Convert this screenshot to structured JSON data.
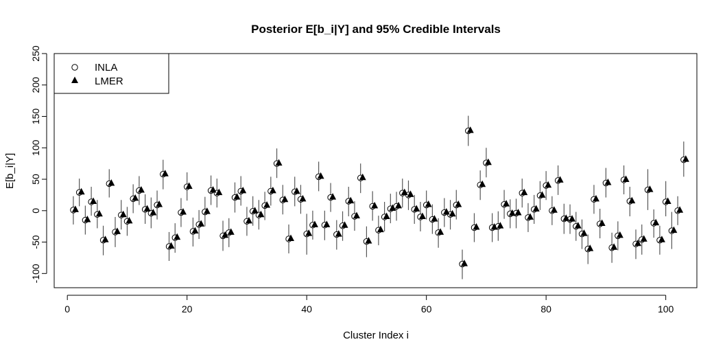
{
  "chart_data": {
    "type": "scatter",
    "title": "Posterior E[b_i|Y] and 95% Credible Intervals",
    "xlabel": "Cluster Index i",
    "ylabel": "E[b_i|Y]",
    "xlim": [
      -2.2,
      105.2
    ],
    "ylim": [
      -122.6,
      250
    ],
    "xticks": [
      0,
      20,
      40,
      60,
      80,
      100
    ],
    "yticks": [
      -100,
      -50,
      0,
      50,
      100,
      150,
      200,
      250
    ],
    "grid": false,
    "legend_position": "top-left",
    "series": [
      {
        "name": "INLA",
        "marker": "open-circle"
      },
      {
        "name": "LMER",
        "marker": "filled-triangle"
      }
    ],
    "x": [
      1,
      2,
      3,
      4,
      5,
      6,
      7,
      8,
      9,
      10,
      11,
      12,
      13,
      14,
      15,
      16,
      17,
      18,
      19,
      20,
      21,
      22,
      23,
      24,
      25,
      26,
      27,
      28,
      29,
      30,
      31,
      32,
      33,
      34,
      35,
      36,
      37,
      38,
      39,
      40,
      41,
      42,
      43,
      44,
      45,
      46,
      47,
      48,
      49,
      50,
      51,
      52,
      53,
      54,
      55,
      56,
      57,
      58,
      59,
      60,
      61,
      62,
      63,
      64,
      65,
      66,
      67,
      68,
      69,
      70,
      71,
      72,
      73,
      74,
      75,
      76,
      77,
      78,
      79,
      80,
      81,
      82,
      83,
      84,
      85,
      86,
      87,
      88,
      89,
      90,
      91,
      92,
      93,
      94,
      95,
      96,
      97,
      98,
      99,
      100,
      101,
      102,
      103
    ],
    "estimate": [
      1,
      29,
      -15,
      14,
      -6,
      -47,
      43,
      -34,
      -7,
      -17,
      19,
      32,
      2,
      -4,
      9,
      58,
      -57,
      -43,
      -3,
      38,
      -33,
      -22,
      -2,
      32,
      28,
      -40,
      -35,
      21,
      31,
      -17,
      -1,
      -7,
      8,
      31,
      75,
      17,
      -45,
      30,
      18,
      -37,
      -23,
      54,
      -23,
      21,
      -38,
      -24,
      15,
      -9,
      52,
      -49,
      7,
      -31,
      -10,
      3,
      7,
      28,
      25,
      2,
      -10,
      9,
      -14,
      -35,
      -3,
      -6,
      9,
      -85,
      127,
      -27,
      41,
      76,
      -27,
      -25,
      10,
      -5,
      -4,
      28,
      -11,
      2,
      24,
      40,
      0,
      48,
      -13,
      -14,
      -25,
      -37,
      -61,
      18,
      -21,
      44,
      -59,
      -40,
      49,
      15,
      -53,
      -46,
      33,
      -20,
      -47,
      14,
      -32,
      0,
      81
    ],
    "lower": [
      -22,
      7,
      -38,
      -8,
      -28,
      -71,
      21,
      -58,
      -30,
      -40,
      -4,
      9,
      -21,
      -28,
      -14,
      34,
      -80,
      -67,
      -26,
      16,
      -57,
      -45,
      -25,
      9,
      5,
      -64,
      -58,
      -3,
      8,
      -40,
      -24,
      -30,
      -15,
      8,
      52,
      -6,
      -68,
      7,
      -5,
      -70,
      -46,
      31,
      -47,
      -2,
      -62,
      -48,
      -9,
      -32,
      28,
      -74,
      -16,
      -55,
      -33,
      -20,
      -16,
      5,
      1,
      -21,
      -33,
      -14,
      -37,
      -59,
      -26,
      -30,
      -14,
      -109,
      103,
      -50,
      17,
      53,
      -50,
      -48,
      -13,
      -28,
      -28,
      5,
      -34,
      -21,
      1,
      17,
      -23,
      25,
      -37,
      -37,
      -48,
      -61,
      -85,
      -5,
      -44,
      21,
      -83,
      -63,
      26,
      -9,
      -77,
      -70,
      1,
      -43,
      -70,
      -9,
      -61,
      -23,
      54
    ],
    "upper": [
      23,
      51,
      8,
      38,
      17,
      -24,
      66,
      -10,
      17,
      6,
      42,
      55,
      26,
      21,
      32,
      81,
      -34,
      -20,
      20,
      61,
      -11,
      1,
      22,
      56,
      51,
      -16,
      -12,
      45,
      55,
      6,
      23,
      17,
      30,
      54,
      99,
      41,
      -22,
      54,
      41,
      -5,
      0,
      78,
      0,
      44,
      -15,
      -1,
      38,
      15,
      75,
      -25,
      31,
      -8,
      14,
      27,
      30,
      51,
      48,
      25,
      14,
      32,
      10,
      -12,
      20,
      17,
      33,
      -62,
      151,
      -4,
      64,
      100,
      -4,
      -1,
      33,
      18,
      19,
      51,
      12,
      25,
      47,
      63,
      23,
      72,
      11,
      10,
      -2,
      -14,
      -38,
      41,
      3,
      68,
      -35,
      -17,
      72,
      38,
      -30,
      -22,
      66,
      2,
      -24,
      47,
      -2,
      23,
      110
    ]
  }
}
